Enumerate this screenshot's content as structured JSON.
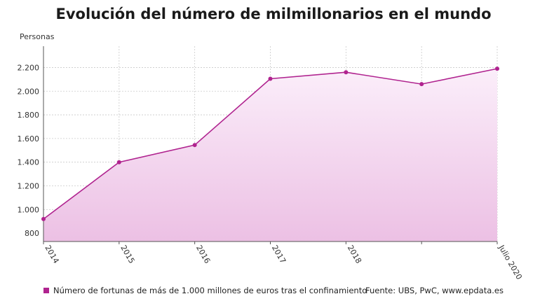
{
  "chart_data": {
    "type": "area",
    "title": "Evolución del número de milmillonarios en el mundo",
    "ylabel": "Personas",
    "x": [
      "2014",
      "2015",
      "2016",
      "2017",
      "2018",
      "",
      "Julio 2020"
    ],
    "series": [
      {
        "name": "Número de fortunas de más de 1.000 millones de euros tras el confinamiento",
        "values": [
          920,
          1400,
          1545,
          2105,
          2160,
          2060,
          2190
        ],
        "color": "#b0238f"
      }
    ],
    "y_ticks": [
      "800",
      "1.000",
      "1.200",
      "1.400",
      "1.600",
      "1.800",
      "2.000",
      "2.200"
    ],
    "y_tick_values": [
      800,
      1000,
      1200,
      1400,
      1600,
      1800,
      2000,
      2200
    ],
    "ylim": [
      730,
      2380
    ],
    "grid": true,
    "legend_position": "bottom-left",
    "source": "Fuente: UBS, PwC, www.epdata.es"
  }
}
